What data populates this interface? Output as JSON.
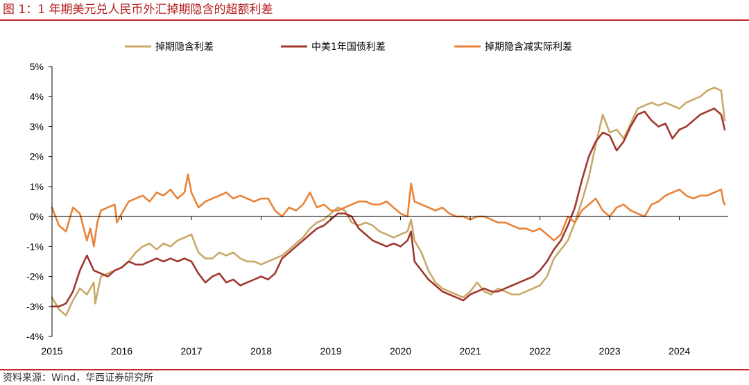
{
  "title": "图 1：1 年期美元兑人民币外汇掉期隐含的超额利差",
  "source": "资料来源：Wind，华西证券研究所",
  "chart_data": {
    "type": "line",
    "xlim": [
      2015,
      2024.7
    ],
    "ylim": [
      -4,
      5
    ],
    "y_ticks": [
      "-4%",
      "-3%",
      "-2%",
      "-1%",
      "0%",
      "1%",
      "2%",
      "3%",
      "4%",
      "5%"
    ],
    "y_tick_values": [
      -4,
      -3,
      -2,
      -1,
      0,
      1,
      2,
      3,
      4,
      5
    ],
    "x_ticks": [
      "2015",
      "2016",
      "2017",
      "2018",
      "2019",
      "2020",
      "2021",
      "2022",
      "2023",
      "2024"
    ],
    "x_tick_values": [
      2015,
      2016,
      2017,
      2018,
      2019,
      2020,
      2021,
      2022,
      2023,
      2024
    ],
    "legend_position": "top-center",
    "grid": false,
    "series": [
      {
        "name": "掉期隐含利差",
        "color": "#c9a86a",
        "x": [
          2015.0,
          2015.1,
          2015.2,
          2015.3,
          2015.4,
          2015.5,
          2015.6,
          2015.62,
          2015.7,
          2015.8,
          2015.9,
          2016.0,
          2016.1,
          2016.2,
          2016.3,
          2016.4,
          2016.5,
          2016.6,
          2016.7,
          2016.8,
          2016.9,
          2017.0,
          2017.1,
          2017.2,
          2017.3,
          2017.4,
          2017.5,
          2017.6,
          2017.7,
          2017.8,
          2017.9,
          2018.0,
          2018.1,
          2018.2,
          2018.3,
          2018.4,
          2018.5,
          2018.6,
          2018.7,
          2018.8,
          2018.9,
          2019.0,
          2019.1,
          2019.2,
          2019.3,
          2019.4,
          2019.5,
          2019.6,
          2019.7,
          2019.8,
          2019.9,
          2020.0,
          2020.1,
          2020.15,
          2020.2,
          2020.3,
          2020.4,
          2020.5,
          2020.6,
          2020.7,
          2020.8,
          2020.9,
          2021.0,
          2021.1,
          2021.2,
          2021.3,
          2021.4,
          2021.5,
          2021.6,
          2021.7,
          2021.8,
          2021.9,
          2022.0,
          2022.1,
          2022.2,
          2022.3,
          2022.4,
          2022.5,
          2022.6,
          2022.7,
          2022.8,
          2022.9,
          2023.0,
          2023.1,
          2023.2,
          2023.3,
          2023.4,
          2023.5,
          2023.6,
          2023.7,
          2023.8,
          2023.9,
          2024.0,
          2024.1,
          2024.2,
          2024.3,
          2024.4,
          2024.5,
          2024.6,
          2024.65
        ],
        "y": [
          -2.7,
          -3.1,
          -3.3,
          -2.8,
          -2.4,
          -2.6,
          -2.2,
          -2.9,
          -2.0,
          -1.9,
          -1.8,
          -1.7,
          -1.5,
          -1.2,
          -1.0,
          -0.9,
          -1.1,
          -0.9,
          -1.0,
          -0.8,
          -0.7,
          -0.6,
          -1.2,
          -1.4,
          -1.4,
          -1.2,
          -1.3,
          -1.2,
          -1.4,
          -1.5,
          -1.5,
          -1.6,
          -1.5,
          -1.4,
          -1.3,
          -1.1,
          -0.9,
          -0.7,
          -0.4,
          -0.2,
          -0.1,
          0.1,
          0.3,
          0.2,
          -0.2,
          -0.3,
          -0.2,
          -0.3,
          -0.5,
          -0.6,
          -0.7,
          -0.6,
          -0.5,
          -0.1,
          -0.8,
          -1.2,
          -1.8,
          -2.2,
          -2.4,
          -2.5,
          -2.6,
          -2.7,
          -2.5,
          -2.2,
          -2.5,
          -2.6,
          -2.4,
          -2.5,
          -2.6,
          -2.6,
          -2.5,
          -2.4,
          -2.3,
          -2.0,
          -1.4,
          -1.1,
          -0.8,
          -0.2,
          0.5,
          1.3,
          2.4,
          3.4,
          2.8,
          2.9,
          2.6,
          3.1,
          3.6,
          3.7,
          3.8,
          3.7,
          3.8,
          3.7,
          3.6,
          3.8,
          3.9,
          4.0,
          4.2,
          4.3,
          4.2,
          3.2
        ]
      },
      {
        "name": "中美1年国债利差",
        "color": "#a0372e",
        "x": [
          2015.0,
          2015.1,
          2015.2,
          2015.3,
          2015.4,
          2015.5,
          2015.6,
          2015.7,
          2015.8,
          2015.9,
          2016.0,
          2016.1,
          2016.2,
          2016.3,
          2016.4,
          2016.5,
          2016.6,
          2016.7,
          2016.8,
          2016.9,
          2017.0,
          2017.1,
          2017.2,
          2017.3,
          2017.4,
          2017.5,
          2017.6,
          2017.7,
          2017.8,
          2017.9,
          2018.0,
          2018.1,
          2018.2,
          2018.3,
          2018.4,
          2018.5,
          2018.6,
          2018.7,
          2018.8,
          2018.9,
          2019.0,
          2019.1,
          2019.2,
          2019.3,
          2019.4,
          2019.5,
          2019.6,
          2019.7,
          2019.8,
          2019.9,
          2020.0,
          2020.1,
          2020.15,
          2020.2,
          2020.3,
          2020.4,
          2020.5,
          2020.6,
          2020.7,
          2020.8,
          2020.9,
          2021.0,
          2021.1,
          2021.2,
          2021.3,
          2021.4,
          2021.5,
          2021.6,
          2021.7,
          2021.8,
          2021.9,
          2022.0,
          2022.1,
          2022.2,
          2022.3,
          2022.4,
          2022.5,
          2022.6,
          2022.7,
          2022.8,
          2022.9,
          2023.0,
          2023.1,
          2023.2,
          2023.3,
          2023.4,
          2023.5,
          2023.6,
          2023.7,
          2023.8,
          2023.9,
          2024.0,
          2024.1,
          2024.2,
          2024.3,
          2024.4,
          2024.5,
          2024.6,
          2024.65
        ],
        "y": [
          -3.0,
          -3.0,
          -2.9,
          -2.5,
          -1.8,
          -1.3,
          -1.8,
          -1.9,
          -2.0,
          -1.8,
          -1.7,
          -1.5,
          -1.6,
          -1.6,
          -1.5,
          -1.4,
          -1.5,
          -1.4,
          -1.5,
          -1.4,
          -1.5,
          -1.9,
          -2.2,
          -2.0,
          -1.9,
          -2.2,
          -2.1,
          -2.3,
          -2.2,
          -2.1,
          -2.0,
          -2.1,
          -1.9,
          -1.4,
          -1.2,
          -1.0,
          -0.8,
          -0.6,
          -0.4,
          -0.3,
          -0.1,
          0.1,
          0.1,
          0.0,
          -0.4,
          -0.6,
          -0.8,
          -0.9,
          -1.0,
          -0.9,
          -1.0,
          -0.8,
          -0.5,
          -1.5,
          -1.8,
          -2.1,
          -2.3,
          -2.5,
          -2.6,
          -2.7,
          -2.8,
          -2.6,
          -2.5,
          -2.4,
          -2.5,
          -2.5,
          -2.4,
          -2.3,
          -2.2,
          -2.1,
          -2.0,
          -1.8,
          -1.5,
          -1.1,
          -0.8,
          -0.3,
          0.3,
          1.2,
          2.0,
          2.5,
          2.8,
          2.7,
          2.2,
          2.5,
          3.0,
          3.4,
          3.5,
          3.2,
          3.0,
          3.1,
          2.6,
          2.9,
          3.0,
          3.2,
          3.4,
          3.5,
          3.6,
          3.4,
          2.9
        ]
      },
      {
        "name": "掉期隐含减实际利差",
        "color": "#e8833a",
        "x": [
          2015.0,
          2015.05,
          2015.1,
          2015.2,
          2015.3,
          2015.4,
          2015.5,
          2015.55,
          2015.6,
          2015.65,
          2015.7,
          2015.8,
          2015.9,
          2015.93,
          2016.0,
          2016.1,
          2016.2,
          2016.3,
          2016.4,
          2016.5,
          2016.6,
          2016.7,
          2016.8,
          2016.9,
          2016.95,
          2017.0,
          2017.1,
          2017.2,
          2017.3,
          2017.4,
          2017.5,
          2017.6,
          2017.7,
          2017.8,
          2017.9,
          2018.0,
          2018.1,
          2018.2,
          2018.3,
          2018.4,
          2018.5,
          2018.6,
          2018.7,
          2018.8,
          2018.9,
          2019.0,
          2019.1,
          2019.2,
          2019.3,
          2019.4,
          2019.5,
          2019.6,
          2019.7,
          2019.8,
          2019.9,
          2020.0,
          2020.1,
          2020.15,
          2020.2,
          2020.3,
          2020.4,
          2020.5,
          2020.6,
          2020.7,
          2020.8,
          2020.9,
          2021.0,
          2021.1,
          2021.2,
          2021.3,
          2021.4,
          2021.5,
          2021.6,
          2021.7,
          2021.8,
          2021.9,
          2022.0,
          2022.1,
          2022.2,
          2022.3,
          2022.4,
          2022.5,
          2022.6,
          2022.7,
          2022.8,
          2022.9,
          2023.0,
          2023.1,
          2023.2,
          2023.3,
          2023.4,
          2023.5,
          2023.6,
          2023.7,
          2023.8,
          2023.9,
          2024.0,
          2024.1,
          2024.2,
          2024.3,
          2024.4,
          2024.5,
          2024.6,
          2024.63,
          2024.65
        ],
        "y": [
          0.3,
          0.0,
          -0.3,
          -0.5,
          0.3,
          0.1,
          -0.8,
          -0.4,
          -1.0,
          -0.2,
          0.2,
          0.3,
          0.4,
          -0.2,
          0.1,
          0.5,
          0.6,
          0.7,
          0.5,
          0.8,
          0.7,
          0.9,
          0.6,
          0.8,
          1.4,
          0.8,
          0.3,
          0.5,
          0.6,
          0.7,
          0.8,
          0.6,
          0.7,
          0.6,
          0.5,
          0.6,
          0.6,
          0.2,
          0.0,
          0.3,
          0.2,
          0.4,
          0.8,
          0.3,
          0.4,
          0.2,
          0.2,
          0.3,
          0.4,
          0.5,
          0.5,
          0.4,
          0.4,
          0.5,
          0.3,
          0.1,
          0.0,
          1.1,
          0.5,
          0.4,
          0.3,
          0.2,
          0.3,
          0.1,
          0.0,
          0.0,
          -0.1,
          0.0,
          0.0,
          -0.1,
          -0.2,
          -0.2,
          -0.3,
          -0.4,
          -0.4,
          -0.5,
          -0.4,
          -0.6,
          -0.8,
          -0.6,
          0.0,
          -0.2,
          0.2,
          0.4,
          0.6,
          0.2,
          0.0,
          0.3,
          0.4,
          0.2,
          0.1,
          0.0,
          0.4,
          0.5,
          0.7,
          0.8,
          0.9,
          0.7,
          0.6,
          0.7,
          0.7,
          0.8,
          0.9,
          0.5,
          0.4
        ]
      }
    ]
  }
}
